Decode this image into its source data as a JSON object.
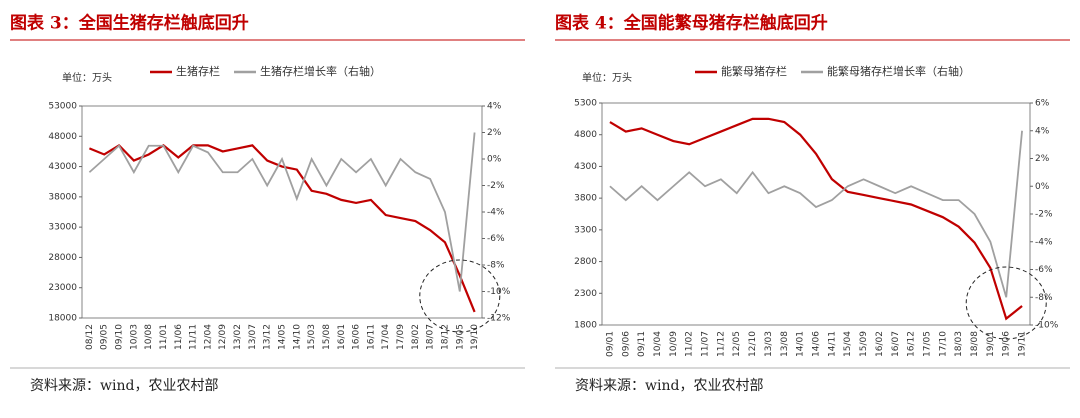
{
  "chart_data": [
    {
      "type": "line",
      "title": "图表 3：全国生猪存栏触底回升",
      "unit_label": "单位：万头",
      "source": "资料来源：wind，农业农村部",
      "categories": [
        "08/12",
        "09/05",
        "09/10",
        "10/03",
        "10/08",
        "11/01",
        "11/06",
        "11/11",
        "12/04",
        "12/09",
        "13/02",
        "13/07",
        "13/12",
        "14/05",
        "14/10",
        "15/03",
        "15/08",
        "16/01",
        "16/06",
        "16/11",
        "17/04",
        "17/09",
        "18/02",
        "18/07",
        "18/12",
        "19/05",
        "19/10"
      ],
      "series": [
        {
          "name": "生猪存栏",
          "color": "#c00000",
          "values": [
            46000,
            45000,
            46500,
            44000,
            45000,
            46500,
            44500,
            46500,
            46500,
            45500,
            46000,
            46500,
            44000,
            43000,
            42500,
            39000,
            38500,
            37500,
            37000,
            37500,
            35000,
            34500,
            34000,
            32500,
            30500,
            25000,
            19000
          ]
        },
        {
          "name": "生猪存栏增长率（右轴）",
          "color": "#a0a0a0",
          "axis": "y2",
          "values": [
            -1,
            0,
            1,
            -1,
            1,
            1,
            -1,
            1,
            0.5,
            -1,
            -1,
            0,
            -2,
            0,
            -3,
            0,
            -2,
            0,
            -1,
            0,
            -2,
            0,
            -1,
            -1.5,
            -4,
            -10,
            2
          ]
        }
      ],
      "ylim": [
        18000,
        53000
      ],
      "yticks": [
        18000,
        23000,
        28000,
        33000,
        38000,
        43000,
        48000,
        53000
      ],
      "y2lim": [
        -12,
        4
      ],
      "y2ticks": [
        {
          "value": -12,
          "label": "-12%"
        },
        {
          "value": -10,
          "label": "-10%"
        },
        {
          "value": -8,
          "label": "-8%"
        },
        {
          "value": -6,
          "label": "-6%"
        },
        {
          "value": -4,
          "label": "-4%"
        },
        {
          "value": -2,
          "label": "-2%"
        },
        {
          "value": 0,
          "label": "0%"
        },
        {
          "value": 2,
          "label": "2%"
        },
        {
          "value": 4,
          "label": "4%"
        }
      ]
    },
    {
      "type": "line",
      "title": "图表 4：全国能繁母猪存栏触底回升",
      "unit_label": "单位：万头",
      "source": "资料来源：wind，农业农村部",
      "categories": [
        "09/01",
        "09/06",
        "09/11",
        "10/04",
        "10/09",
        "11/02",
        "11/07",
        "11/12",
        "12/05",
        "12/10",
        "13/03",
        "13/08",
        "14/01",
        "14/06",
        "14/11",
        "15/04",
        "15/09",
        "16/02",
        "16/07",
        "16/12",
        "17/05",
        "17/10",
        "18/03",
        "18/08",
        "19/01",
        "19/06",
        "19/11"
      ],
      "series": [
        {
          "name": "能繁母猪存栏",
          "color": "#c00000",
          "values": [
            5000,
            4850,
            4900,
            4800,
            4700,
            4650,
            4750,
            4850,
            4950,
            5050,
            5050,
            5000,
            4800,
            4500,
            4100,
            3900,
            3850,
            3800,
            3750,
            3700,
            3600,
            3500,
            3350,
            3100,
            2700,
            1900,
            2100
          ]
        },
        {
          "name": "能繁母猪存栏增长率（右轴）",
          "color": "#a0a0a0",
          "axis": "y2",
          "values": [
            0,
            -1,
            0,
            -1,
            0,
            1,
            0,
            0.5,
            -0.5,
            1,
            -0.5,
            0,
            -0.5,
            -1.5,
            -1,
            0,
            0.5,
            0,
            -0.5,
            0,
            -0.5,
            -1,
            -1,
            -2,
            -4,
            -8,
            4
          ]
        }
      ],
      "ylim": [
        1800,
        5300
      ],
      "yticks": [
        1800,
        2300,
        2800,
        3300,
        3800,
        4300,
        4800,
        5300
      ],
      "y2lim": [
        -10,
        6
      ],
      "y2ticks": [
        {
          "value": -10,
          "label": "-10%"
        },
        {
          "value": -8,
          "label": "-8%"
        },
        {
          "value": -6,
          "label": "-6%"
        },
        {
          "value": -4,
          "label": "-4%"
        },
        {
          "value": -2,
          "label": "-2%"
        },
        {
          "value": 0,
          "label": "0%"
        },
        {
          "value": 2,
          "label": "2%"
        },
        {
          "value": 4,
          "label": "4%"
        },
        {
          "value": 6,
          "label": "6%"
        }
      ]
    }
  ]
}
